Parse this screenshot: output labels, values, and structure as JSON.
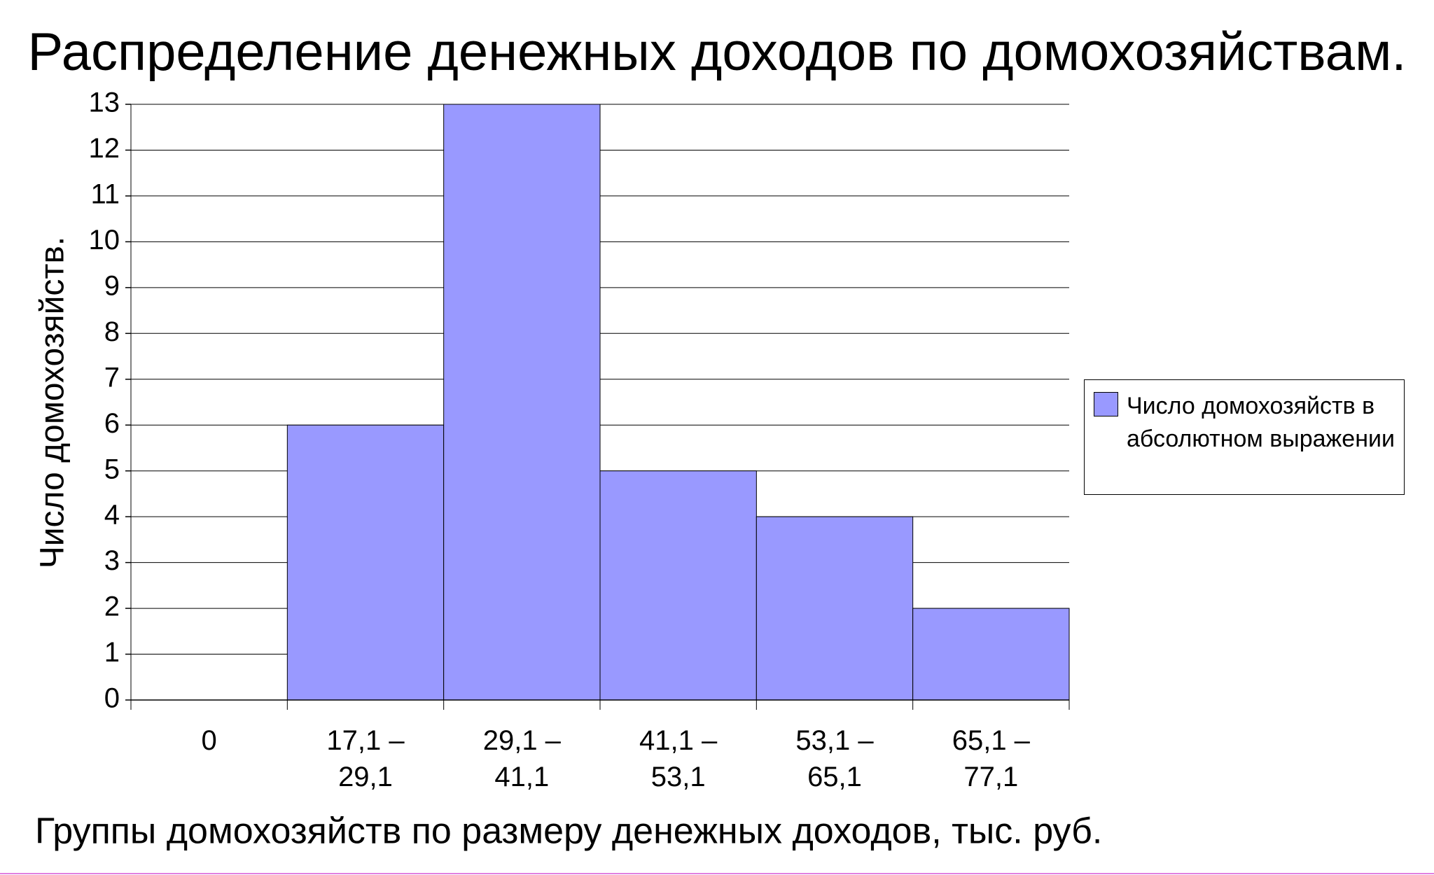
{
  "chart_data": {
    "type": "bar",
    "title": "Распределение денежных доходов по домохозяйствам.",
    "x_label": "Группы домохозяйств по размеру денежных доходов, тыс. руб.",
    "y_label": "Число домохозяйств.",
    "categories": [
      "0",
      "17,1 – 29,1",
      "29,1 – 41,1",
      "41,1 – 53,1",
      "53,1 – 65,1",
      "65,1 – 77,1"
    ],
    "series": [
      {
        "name": "Число домохозяйств в абсолютном выражении",
        "color": "#9999ff",
        "values": [
          0,
          6,
          13,
          5,
          4,
          2
        ]
      }
    ],
    "ylim": [
      0,
      13
    ],
    "yticks": [
      0,
      1,
      2,
      3,
      4,
      5,
      6,
      7,
      8,
      9,
      10,
      11,
      12,
      13
    ],
    "grid": true,
    "legend": "right"
  }
}
